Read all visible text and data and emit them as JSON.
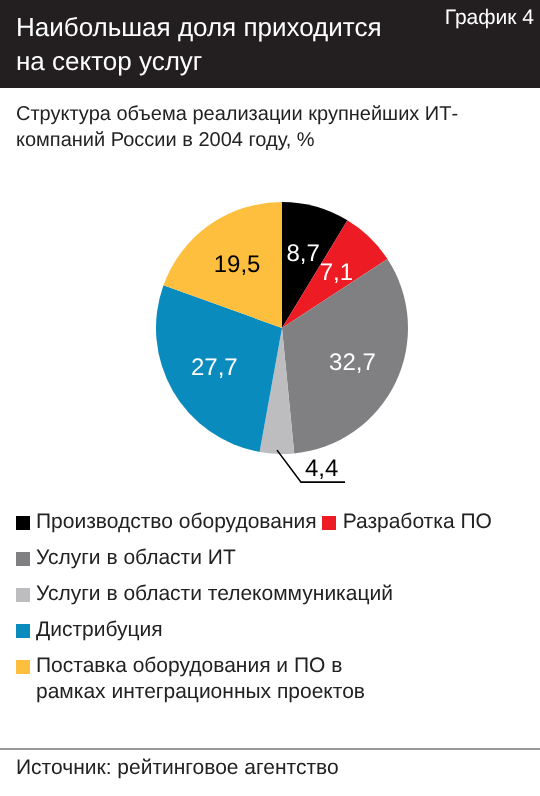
{
  "chart_data": {
    "type": "pie",
    "title": "Наибольшая доля приходится на сектор услуг",
    "subtitle": "Структура объема реализации крупнейших ИТ-компаний  России в 2004 году, %",
    "categories": [
      "Производство оборудования",
      "Разработка ПО",
      "Услуги в области ИТ",
      "Услуги в области телекоммуникаций",
      "Дистрибуция",
      "Поставка оборудования и ПО в рамках интеграционных проектов"
    ],
    "values": [
      8.7,
      7.1,
      32.7,
      4.4,
      27.7,
      19.5
    ],
    "colors": [
      "#000000",
      "#ed1c24",
      "#808083",
      "#bdbdbf",
      "#0a8bbd",
      "#fdbf3d"
    ],
    "value_labels": [
      "8,7",
      "7,1",
      "32,7",
      "4,4",
      "27,7",
      "19,5"
    ],
    "legend": "bottom",
    "annotations": [
      "График 4",
      "Источник: рейтинговое агентство"
    ]
  }
}
